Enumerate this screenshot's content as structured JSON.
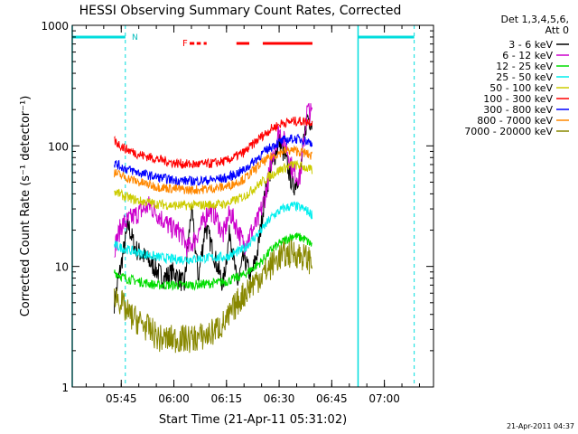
{
  "chart_data": {
    "type": "line",
    "title": "HESSI Observing Summary Count Rates, Corrected",
    "xlabel": "Start Time (21-Apr-11 05:31:02)",
    "ylabel": "Corrected Count Rate (s⁻¹ detector⁻¹)",
    "yscale": "log",
    "ylim": [
      1,
      1000
    ],
    "xlim": [
      "05:31:02",
      "07:14:00"
    ],
    "x_ticks": [
      "05:45",
      "06:00",
      "06:15",
      "06:30",
      "06:45",
      "07:00"
    ],
    "y_ticks": [
      "1",
      "10",
      "100",
      "1000"
    ],
    "legend_title": [
      "Det 1,3,4,5,6,",
      "Att 0"
    ],
    "legend_position": "right",
    "footer_text": "21-Apr-2011 04:37",
    "grid": false,
    "markers": {
      "night_bars": [
        {
          "start": "05:31:02",
          "end": "05:46:10"
        },
        {
          "start": "06:52:30",
          "end": "07:08:30"
        }
      ],
      "saa_label": "N",
      "saa_label_time": "05:47:00",
      "flare_label": "F",
      "flare_segments": [
        {
          "start": "06:04:30",
          "end": "06:05:50"
        },
        {
          "start": "06:06:30",
          "end": "06:07:40"
        },
        {
          "start": "06:08:30",
          "end": "06:09:20"
        },
        {
          "start": "06:17:50",
          "end": "06:21:30"
        },
        {
          "start": "06:25:20",
          "end": "06:39:30"
        }
      ],
      "dashed_lines": [
        "05:46:10",
        "07:08:30"
      ],
      "solid_lines": [
        "05:31:02",
        "06:52:30"
      ]
    },
    "data_start": "05:43:00",
    "data_end": "06:39:30",
    "series": [
      {
        "name": "3 - 6 keV",
        "color": "#000000",
        "times": [
          "05:43",
          "05:47",
          "05:49",
          "05:53",
          "05:57",
          "06:00",
          "06:03",
          "06:05",
          "06:07",
          "06:09",
          "06:12",
          "06:14",
          "06:16",
          "06:18",
          "06:20",
          "06:22",
          "06:24",
          "06:26",
          "06:28",
          "06:30",
          "06:32",
          "06:34",
          "06:36",
          "06:38",
          "06:39:30"
        ],
        "values": [
          5,
          22,
          14,
          11,
          8,
          9,
          7,
          30,
          8,
          22,
          11,
          7,
          20,
          7,
          12,
          8,
          14,
          40,
          70,
          110,
          75,
          45,
          60,
          180,
          150
        ]
      },
      {
        "name": "6 - 12 keV",
        "color": "#cc00cc",
        "times": [
          "05:43",
          "05:45",
          "05:47",
          "05:50",
          "05:53",
          "05:56",
          "05:59",
          "06:02",
          "06:04",
          "06:06",
          "06:08",
          "06:10",
          "06:12",
          "06:14",
          "06:16",
          "06:18",
          "06:20",
          "06:22",
          "06:24",
          "06:26",
          "06:28",
          "06:30",
          "06:32",
          "06:34",
          "06:36",
          "06:38",
          "06:39:30"
        ],
        "values": [
          14,
          22,
          24,
          28,
          32,
          26,
          21,
          19,
          14,
          17,
          22,
          30,
          26,
          18,
          28,
          21,
          15,
          19,
          24,
          38,
          80,
          135,
          100,
          60,
          55,
          200,
          180
        ]
      },
      {
        "name": "12 - 25 keV",
        "color": "#00dd00",
        "times": [
          "05:43",
          "05:46",
          "05:50",
          "05:55",
          "06:00",
          "06:05",
          "06:10",
          "06:15",
          "06:20",
          "06:25",
          "06:28",
          "06:31",
          "06:34",
          "06:37",
          "06:39:30"
        ],
        "values": [
          9,
          8,
          7.5,
          7,
          7,
          7,
          7.2,
          7.5,
          8.5,
          11,
          14,
          16,
          18,
          17,
          15
        ]
      },
      {
        "name": "25 - 50 keV",
        "color": "#00eeee",
        "times": [
          "05:43",
          "05:46",
          "05:50",
          "05:55",
          "06:00",
          "06:05",
          "06:10",
          "06:15",
          "06:20",
          "06:25",
          "06:28",
          "06:31",
          "06:34",
          "06:37",
          "06:39:30"
        ],
        "values": [
          15,
          14,
          13,
          12,
          11.5,
          11.5,
          11.8,
          12,
          14,
          20,
          26,
          30,
          32,
          30,
          27
        ]
      },
      {
        "name": "50 - 100 keV",
        "color": "#cccc00",
        "times": [
          "05:43",
          "05:46",
          "05:50",
          "05:55",
          "06:00",
          "06:05",
          "06:10",
          "06:15",
          "06:20",
          "06:25",
          "06:28",
          "06:31",
          "06:34",
          "06:37",
          "06:39:30"
        ],
        "values": [
          42,
          38,
          35,
          33,
          32,
          32,
          32.5,
          33,
          38,
          50,
          58,
          65,
          70,
          67,
          62
        ]
      },
      {
        "name": "100 - 300 keV",
        "color": "#ff0000",
        "times": [
          "05:43",
          "05:46",
          "05:50",
          "05:55",
          "06:00",
          "06:05",
          "06:10",
          "06:15",
          "06:20",
          "06:25",
          "06:28",
          "06:31",
          "06:34",
          "06:37",
          "06:39:30"
        ],
        "values": [
          110,
          95,
          85,
          78,
          72,
          70,
          71,
          75,
          88,
          120,
          140,
          155,
          160,
          160,
          158
        ]
      },
      {
        "name": "300 - 800 keV",
        "color": "#0000ff",
        "times": [
          "05:43",
          "05:46",
          "05:50",
          "05:55",
          "06:00",
          "06:05",
          "06:10",
          "06:15",
          "06:20",
          "06:25",
          "06:28",
          "06:31",
          "06:34",
          "06:37",
          "06:39:30"
        ],
        "values": [
          72,
          65,
          60,
          55,
          52,
          51,
          52,
          54,
          63,
          85,
          100,
          110,
          115,
          112,
          105
        ]
      },
      {
        "name": "800 - 7000 keV",
        "color": "#ff8800",
        "times": [
          "05:43",
          "05:46",
          "05:50",
          "05:55",
          "06:00",
          "06:05",
          "06:10",
          "06:15",
          "06:20",
          "06:25",
          "06:28",
          "06:31",
          "06:34",
          "06:37",
          "06:39:30"
        ],
        "values": [
          60,
          55,
          50,
          46,
          44,
          43,
          44,
          46,
          53,
          72,
          82,
          90,
          92,
          88,
          82
        ]
      },
      {
        "name": "7000 - 20000 keV",
        "color": "#888800",
        "times": [
          "05:43",
          "05:45",
          "05:47",
          "05:50",
          "05:53",
          "05:56",
          "06:00",
          "06:05",
          "06:10",
          "06:15",
          "06:18",
          "06:22",
          "06:26",
          "06:30",
          "06:34",
          "06:37",
          "06:39:30"
        ],
        "values": [
          6,
          5,
          4,
          3.5,
          3,
          2.5,
          2.5,
          2.5,
          2.7,
          3.5,
          5,
          7,
          9,
          12,
          13,
          12,
          11
        ]
      }
    ]
  }
}
